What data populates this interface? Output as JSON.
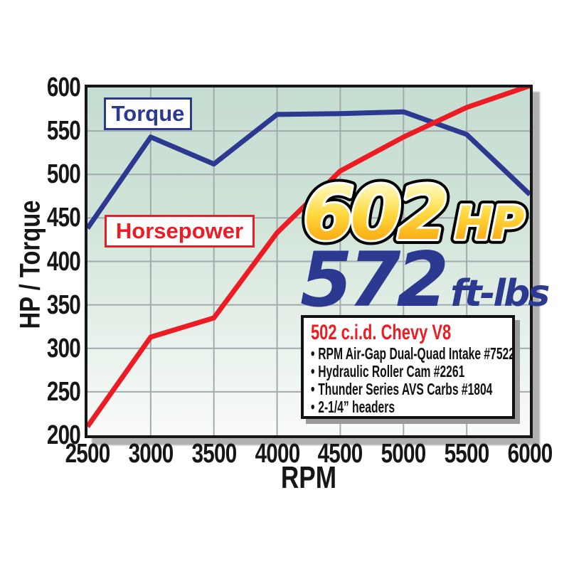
{
  "chart_data": {
    "type": "line",
    "title": "",
    "xlabel": "RPM",
    "ylabel": "HP / Torque",
    "xlim": [
      2500,
      6000
    ],
    "ylim": [
      200,
      600
    ],
    "grid": true,
    "gridline_color": "#a3aaaf",
    "frame_color": "#161616",
    "plot_bg_top": "#c6ddd1",
    "plot_bg_bottom": "#f9fbf9",
    "x": [
      2500,
      3000,
      3500,
      4000,
      4500,
      5000,
      5500,
      6000
    ],
    "series": [
      {
        "name": "Torque",
        "color": "#2b3990",
        "values": [
          438,
          543,
          512,
          569,
          570,
          572,
          546,
          477
        ]
      },
      {
        "name": "Horsepower",
        "color": "#ed1c24",
        "values": [
          210,
          313,
          335,
          433,
          504,
          543,
          577,
          602
        ]
      }
    ],
    "xticklabels": [
      "2500",
      "3000",
      "3500",
      "4000",
      "4500",
      "5000",
      "5500",
      "6000"
    ],
    "yticklabels": [
      "600",
      "550",
      "500",
      "450",
      "400",
      "350",
      "300",
      "250",
      "200"
    ],
    "legend_position": "inside-left"
  },
  "legend": {
    "torque_label": "Torque",
    "horsepower_label": "Horsepower"
  },
  "callout": {
    "hp_value": "602",
    "hp_unit": "HP",
    "hp_gradient_top": "#fffef0",
    "hp_gradient_bottom": "#f58220",
    "torque_value": "572",
    "torque_unit": "ft-lbs",
    "torque_color": "#2b3990"
  },
  "spec_box": {
    "title": "502 c.i.d. Chevy V8",
    "bullet": "•",
    "items": [
      "RPM Air-Gap Dual-Quad Intake #7522",
      "Hydraulic Roller Cam #2261",
      "Thunder Series AVS Carbs #1804",
      "2-1/4” headers"
    ]
  }
}
